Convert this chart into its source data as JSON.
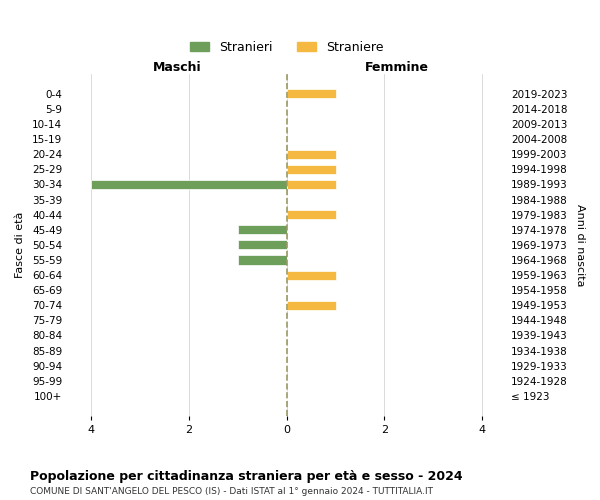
{
  "age_groups": [
    "100+",
    "95-99",
    "90-94",
    "85-89",
    "80-84",
    "75-79",
    "70-74",
    "65-69",
    "60-64",
    "55-59",
    "50-54",
    "45-49",
    "40-44",
    "35-39",
    "30-34",
    "25-29",
    "20-24",
    "15-19",
    "10-14",
    "5-9",
    "0-4"
  ],
  "birth_years": [
    "≤ 1923",
    "1924-1928",
    "1929-1933",
    "1934-1938",
    "1939-1943",
    "1944-1948",
    "1949-1953",
    "1954-1958",
    "1959-1963",
    "1964-1968",
    "1969-1973",
    "1974-1978",
    "1979-1983",
    "1984-1988",
    "1989-1993",
    "1994-1998",
    "1999-2003",
    "2004-2008",
    "2009-2013",
    "2014-2018",
    "2019-2023"
  ],
  "males": [
    0,
    0,
    0,
    0,
    0,
    0,
    0,
    0,
    0,
    1,
    1,
    1,
    0,
    0,
    4,
    0,
    0,
    0,
    0,
    0,
    0
  ],
  "females": [
    0,
    0,
    0,
    0,
    0,
    0,
    1,
    0,
    1,
    0,
    0,
    0,
    1,
    0,
    1,
    1,
    1,
    0,
    0,
    0,
    1
  ],
  "male_color": "#6d9f5b",
  "female_color": "#f5b942",
  "xlim": 4.5,
  "xticks": [
    -4,
    -2,
    0,
    2,
    4
  ],
  "xtick_labels": [
    "4",
    "2",
    "0",
    "2",
    "4"
  ],
  "title": "Popolazione per cittadinanza straniera per età e sesso - 2024",
  "subtitle": "COMUNE DI SANT'ANGELO DEL PESCO (IS) - Dati ISTAT al 1° gennaio 2024 - TUTTITALIA.IT",
  "legend_male": "Stranieri",
  "legend_female": "Straniere",
  "left_header": "Maschi",
  "right_header": "Femmine",
  "left_ylabel": "Fasce di età",
  "right_ylabel": "Anni di nascita",
  "background_color": "#ffffff",
  "grid_color": "#cccccc"
}
